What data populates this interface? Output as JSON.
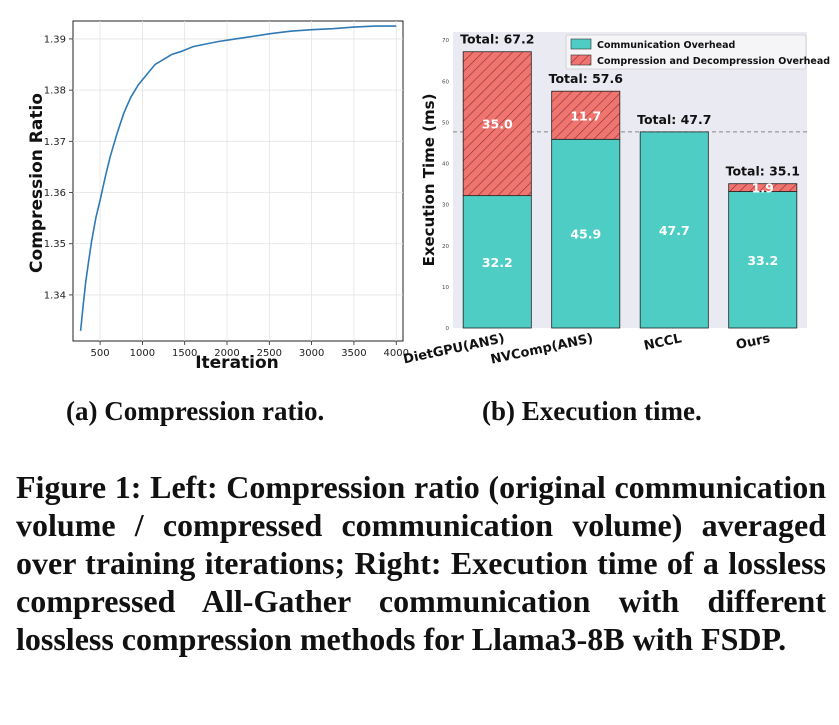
{
  "chart_data": [
    {
      "type": "line",
      "xlabel": "Iteration",
      "ylabel": "Compression Ratio",
      "xlim": [
        180,
        4080
      ],
      "ylim": [
        1.331,
        1.3935
      ],
      "x_ticks": [
        500,
        1000,
        1500,
        2000,
        2500,
        3000,
        3500,
        4000
      ],
      "y_ticks": [
        1.34,
        1.35,
        1.36,
        1.37,
        1.38,
        1.39
      ],
      "line_color": "#2f7ab5",
      "series": [
        {
          "x": [
            270,
            300,
            330,
            360,
            400,
            450,
            500,
            560,
            620,
            700,
            780,
            860,
            950,
            1050,
            1150,
            1250,
            1350,
            1450,
            1600,
            1750,
            1900,
            2100,
            2300,
            2500,
            2750,
            3000,
            3250,
            3500,
            3750,
            4000
          ],
          "y": [
            1.333,
            1.338,
            1.3425,
            1.346,
            1.3505,
            1.355,
            1.3585,
            1.363,
            1.367,
            1.3715,
            1.3755,
            1.3785,
            1.381,
            1.383,
            1.385,
            1.386,
            1.387,
            1.3875,
            1.3885,
            1.389,
            1.3895,
            1.39,
            1.3905,
            1.391,
            1.3915,
            1.3918,
            1.392,
            1.3923,
            1.3925,
            1.3925
          ]
        }
      ]
    },
    {
      "type": "bar",
      "ylabel": "Execution Time (ms)",
      "ylim": [
        0,
        72
      ],
      "y_ticks": [
        0,
        10,
        20,
        30,
        40,
        50,
        60,
        70
      ],
      "categories": [
        "DietGPU(ANS)",
        "NVComp(ANS)",
        "NCCL",
        "Ours"
      ],
      "series": [
        {
          "name": "Communication Overhead",
          "color": "#4ecdc4",
          "values": [
            32.2,
            45.9,
            47.7,
            33.2
          ]
        },
        {
          "name": "Compression and Decompression Overhead",
          "color": "#f07470",
          "values": [
            35.0,
            11.7,
            0,
            1.9
          ]
        }
      ],
      "segment_labels": {
        "comm": [
          "32.2",
          "45.9",
          "47.7",
          "33.2"
        ],
        "comp": [
          "35.0",
          "11.7",
          "",
          "1.9"
        ]
      },
      "totals": [
        "Total: 67.2",
        "Total: 57.6",
        "Total: 47.7",
        "Total: 35.1"
      ],
      "reference_line": 47.7,
      "legend_position": "top-right"
    }
  ],
  "subcaptions": {
    "left": "(a) Compression ratio.",
    "right": "(b) Execution time."
  },
  "caption": "Figure 1: Left: Compression ratio (original communication volume / compressed communication volume) averaged over training iterations; Right: Execution time of a lossless compressed All-Gather communication with different lossless compression methods for Llama3-8B with FSDP."
}
